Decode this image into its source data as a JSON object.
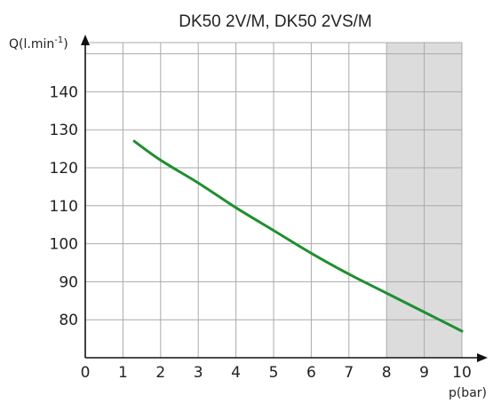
{
  "chart_data": {
    "type": "line",
    "title": "DK50 2V/M, DK50 2VS/M",
    "xlabel": "p(bar)",
    "ylabel_main": "Q(l.min",
    "ylabel_sup": "-1",
    "ylabel_close": ")",
    "xlim": [
      0,
      10
    ],
    "ylim": [
      70,
      150
    ],
    "x_ticks": [
      "0",
      "1",
      "2",
      "3",
      "4",
      "5",
      "6",
      "7",
      "8",
      "9",
      "10"
    ],
    "y_ticks": [
      "80",
      "90",
      "100",
      "110",
      "120",
      "130",
      "140"
    ],
    "grid": true,
    "shaded_region": {
      "x_from": 8,
      "x_to": 10,
      "color": "#dcdcdc"
    },
    "series": [
      {
        "color": "#1e8f2e",
        "x": [
          1.3,
          2,
          3,
          4,
          5,
          6,
          7,
          8,
          9,
          10
        ],
        "y": [
          127,
          122,
          116,
          109.5,
          103.5,
          97.5,
          92,
          87,
          82,
          77
        ]
      }
    ]
  }
}
